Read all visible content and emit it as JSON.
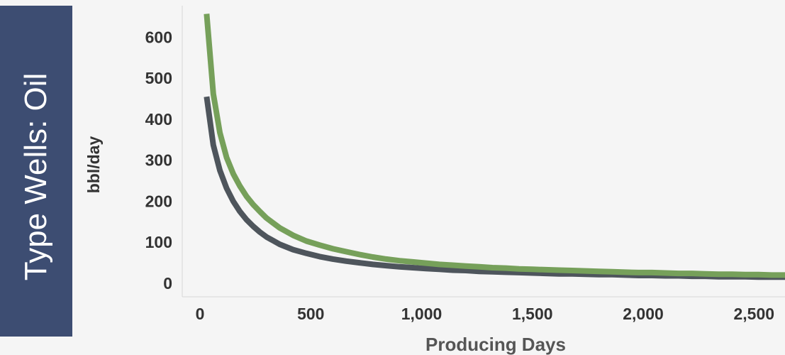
{
  "slide": {
    "side_title": "Type Wells: Oil"
  },
  "chart_data": {
    "type": "line",
    "title": "",
    "xlabel": "Producing Days",
    "ylabel": "bbl/day",
    "xlim": [
      -80,
      2640
    ],
    "ylim": [
      -30,
      680
    ],
    "xticks": [
      0,
      500,
      1000,
      1500,
      2000,
      2500
    ],
    "xtick_labels": [
      "0",
      "500",
      "1,000",
      "1,500",
      "2,000",
      "2,500"
    ],
    "yticks": [
      0,
      100,
      200,
      300,
      400,
      500,
      600
    ],
    "ytick_labels": [
      "0",
      "100",
      "200",
      "300",
      "400",
      "500",
      "600"
    ],
    "grid": false,
    "legend": "none",
    "series": [
      {
        "color": "#76a05a",
        "x": [
          30,
          60,
          90,
          120,
          150,
          180,
          210,
          240,
          270,
          300,
          360,
          420,
          480,
          540,
          600,
          660,
          720,
          780,
          840,
          900,
          960,
          1020,
          1080,
          1140,
          1200,
          1260,
          1320,
          1380,
          1440,
          1500,
          1560,
          1620,
          1680,
          1740,
          1800,
          1860,
          1920,
          1980,
          2040,
          2100,
          2160,
          2220,
          2280,
          2340,
          2400,
          2460,
          2520,
          2580,
          2640
        ],
        "values": [
          660,
          465,
          370,
          310,
          270,
          240,
          215,
          195,
          178,
          162,
          138,
          120,
          106,
          96,
          87,
          80,
          73,
          67,
          62,
          58,
          55,
          52,
          49,
          47,
          45,
          43,
          41,
          40,
          38,
          37,
          36,
          35,
          34,
          33,
          32,
          31,
          30,
          29,
          29,
          28,
          27,
          27,
          26,
          25,
          25,
          24,
          24,
          23,
          23
        ]
      },
      {
        "color": "#4e555c",
        "x": [
          30,
          60,
          90,
          120,
          150,
          180,
          210,
          240,
          270,
          300,
          360,
          420,
          480,
          540,
          600,
          660,
          720,
          780,
          840,
          900,
          960,
          1020,
          1080,
          1140,
          1200,
          1260,
          1320,
          1380,
          1440,
          1500,
          1560,
          1620,
          1680,
          1740,
          1800,
          1860,
          1920,
          1980,
          2040,
          2100,
          2160,
          2220,
          2280,
          2340,
          2400,
          2460,
          2520,
          2580,
          2640
        ],
        "values": [
          458,
          340,
          278,
          235,
          203,
          178,
          158,
          142,
          128,
          116,
          98,
          85,
          76,
          68,
          62,
          57,
          53,
          49,
          46,
          43,
          41,
          39,
          37,
          35,
          34,
          32,
          31,
          30,
          29,
          28,
          27,
          26,
          26,
          25,
          24,
          24,
          23,
          22,
          22,
          21,
          21,
          20,
          20,
          19,
          19,
          19,
          18,
          18,
          18
        ]
      }
    ]
  }
}
